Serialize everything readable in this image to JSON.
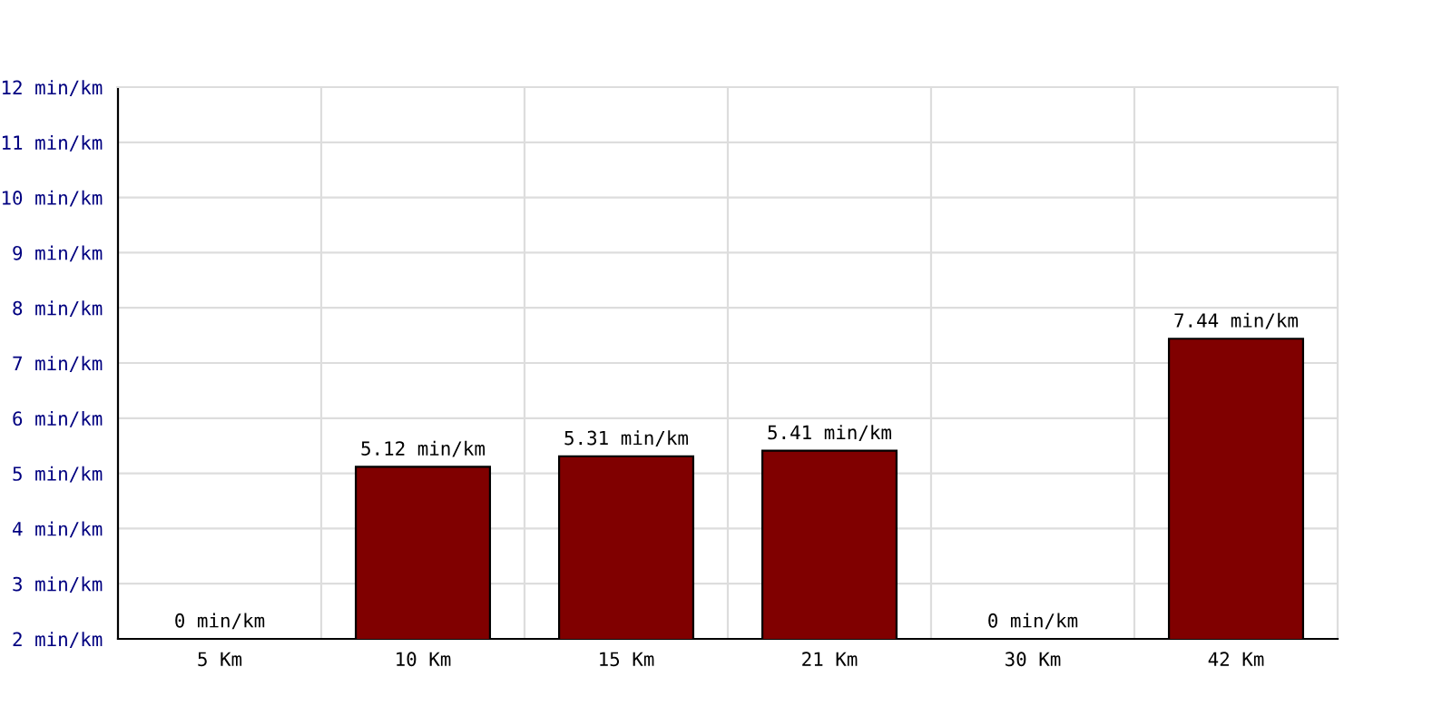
{
  "chart_data": {
    "type": "bar",
    "categories": [
      "5 Km",
      "10 Km",
      "15 Km",
      "21 Km",
      "30 Km",
      "42 Km"
    ],
    "values": [
      null,
      5.12,
      5.31,
      5.41,
      null,
      7.44
    ],
    "value_labels": [
      "0 min/km",
      "5.12 min/km",
      "5.31 min/km",
      "5.41 min/km",
      "0 min/km",
      "7.44 min/km"
    ],
    "color": "#800000",
    "ylim": [
      2,
      12
    ],
    "yticks": [
      {
        "value": 2,
        "label": "2 min/km"
      },
      {
        "value": 3,
        "label": "3 min/km"
      },
      {
        "value": 4,
        "label": "4 min/km"
      },
      {
        "value": 5,
        "label": "5 min/km"
      },
      {
        "value": 6,
        "label": "6 min/km"
      },
      {
        "value": 7,
        "label": "7 min/km"
      },
      {
        "value": 8,
        "label": "8 min/km"
      },
      {
        "value": 9,
        "label": "9 min/km"
      },
      {
        "value": 10,
        "label": "10 min/km"
      },
      {
        "value": 11,
        "label": "11 min/km"
      },
      {
        "value": 12,
        "label": "12 min/km"
      }
    ],
    "grid": true
  }
}
